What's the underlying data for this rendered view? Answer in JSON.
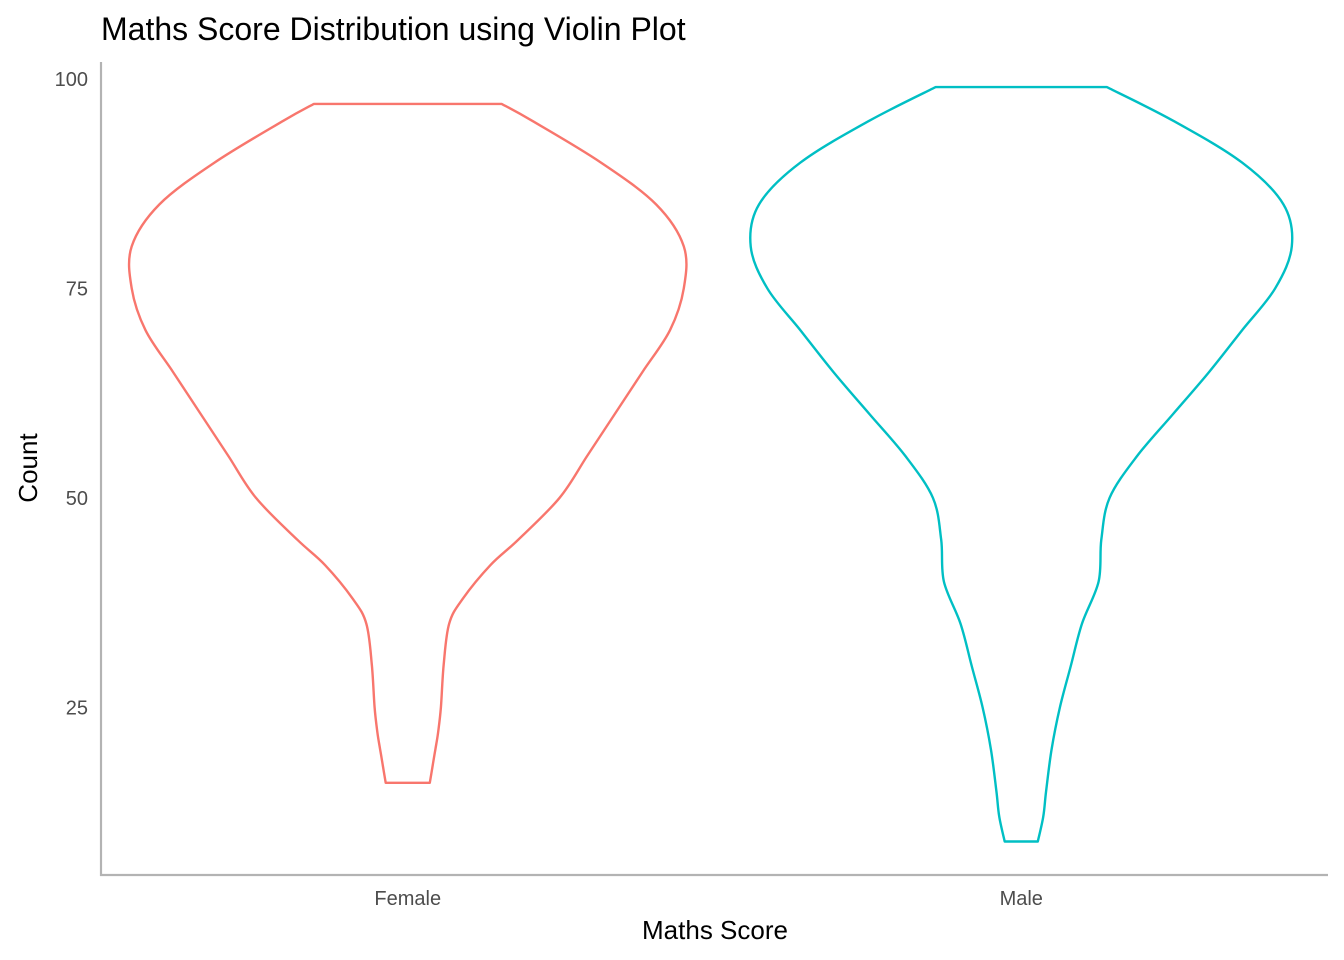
{
  "chart_data": {
    "type": "violin",
    "title": "Maths Score Distribution using Violin Plot",
    "xlabel": "Maths Score",
    "ylabel": "Count",
    "categories": [
      "Female",
      "Male"
    ],
    "ylim": [
      5,
      102
    ],
    "yticks": [
      25,
      50,
      75,
      100
    ],
    "grid": false,
    "legend": "none",
    "series": [
      {
        "category": "Female",
        "color": "#F8766D",
        "min": 16,
        "max": 97,
        "density": [
          [
            16,
            0.08
          ],
          [
            18,
            0.09
          ],
          [
            20,
            0.1
          ],
          [
            22,
            0.11
          ],
          [
            25,
            0.12
          ],
          [
            30,
            0.13
          ],
          [
            35,
            0.15
          ],
          [
            38,
            0.2
          ],
          [
            42,
            0.3
          ],
          [
            45,
            0.4
          ],
          [
            50,
            0.55
          ],
          [
            55,
            0.65
          ],
          [
            60,
            0.75
          ],
          [
            65,
            0.85
          ],
          [
            70,
            0.95
          ],
          [
            75,
            1.0
          ],
          [
            80,
            1.0
          ],
          [
            85,
            0.9
          ],
          [
            90,
            0.7
          ],
          [
            95,
            0.45
          ],
          [
            97,
            0.34
          ]
        ]
      },
      {
        "category": "Male",
        "color": "#00BFC4",
        "min": 9,
        "max": 99,
        "density": [
          [
            9,
            0.06
          ],
          [
            12,
            0.08
          ],
          [
            15,
            0.09
          ],
          [
            20,
            0.11
          ],
          [
            25,
            0.14
          ],
          [
            30,
            0.18
          ],
          [
            35,
            0.22
          ],
          [
            40,
            0.28
          ],
          [
            45,
            0.29
          ],
          [
            50,
            0.32
          ],
          [
            55,
            0.42
          ],
          [
            60,
            0.55
          ],
          [
            65,
            0.68
          ],
          [
            70,
            0.8
          ],
          [
            75,
            0.92
          ],
          [
            80,
            0.98
          ],
          [
            85,
            0.95
          ],
          [
            90,
            0.8
          ],
          [
            95,
            0.55
          ],
          [
            99,
            0.31
          ]
        ]
      }
    ]
  }
}
